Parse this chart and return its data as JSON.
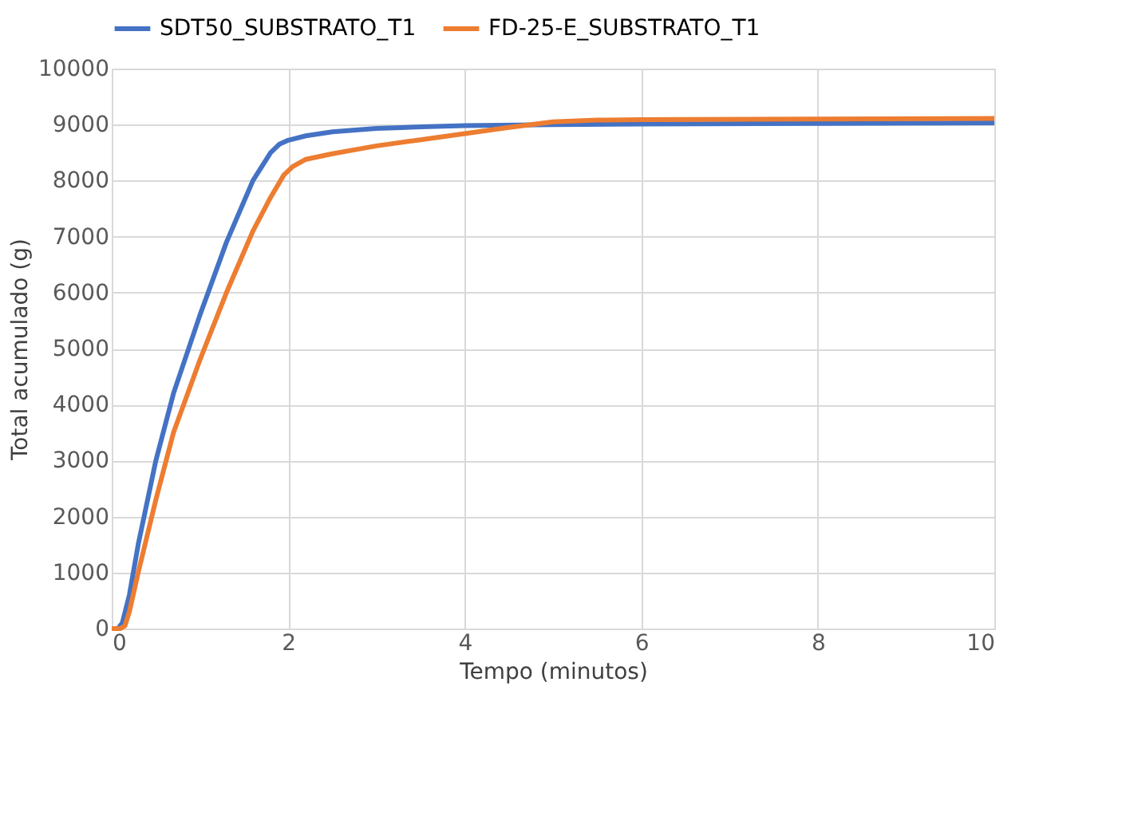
{
  "chart_data": {
    "type": "line",
    "xlabel": "Tempo (minutos)",
    "ylabel": "Total acumulado (g)",
    "xlim": [
      0,
      10
    ],
    "xticks": [
      0,
      2,
      4,
      6,
      8,
      10
    ],
    "ylim": [
      0,
      10000
    ],
    "yticks": [
      0,
      1000,
      2000,
      3000,
      4000,
      5000,
      6000,
      7000,
      8000,
      9000,
      10000
    ],
    "grid": true,
    "legend": "top",
    "marker": "none",
    "line_style": "solid",
    "series": [
      {
        "name": "SDT50_SUBSTRATO_T1",
        "color": "#4472c4",
        "x": [
          0,
          0.07,
          0.12,
          0.2,
          0.3,
          0.5,
          0.7,
          1.0,
          1.3,
          1.6,
          1.8,
          1.9,
          2.0,
          2.2,
          2.5,
          3,
          3.5,
          4,
          5,
          6,
          8,
          10
        ],
        "values": [
          0,
          0,
          100,
          600,
          1500,
          3000,
          4200,
          5600,
          6900,
          8000,
          8500,
          8650,
          8720,
          8800,
          8870,
          8930,
          8960,
          8980,
          9000,
          9010,
          9020,
          9030
        ]
      },
      {
        "name": "FD-25-E_SUBSTRATO_T1",
        "color": "#ed7d31",
        "x": [
          0,
          0.1,
          0.15,
          0.2,
          0.3,
          0.5,
          0.7,
          1.0,
          1.3,
          1.6,
          1.8,
          1.95,
          2.05,
          2.2,
          2.5,
          3,
          3.5,
          4,
          4.5,
          5,
          5.5,
          6,
          8,
          10
        ],
        "values": [
          0,
          0,
          50,
          300,
          1000,
          2300,
          3500,
          4800,
          6000,
          7100,
          7700,
          8100,
          8250,
          8380,
          8480,
          8620,
          8730,
          8840,
          8950,
          9050,
          9080,
          9090,
          9100,
          9110
        ]
      }
    ]
  }
}
